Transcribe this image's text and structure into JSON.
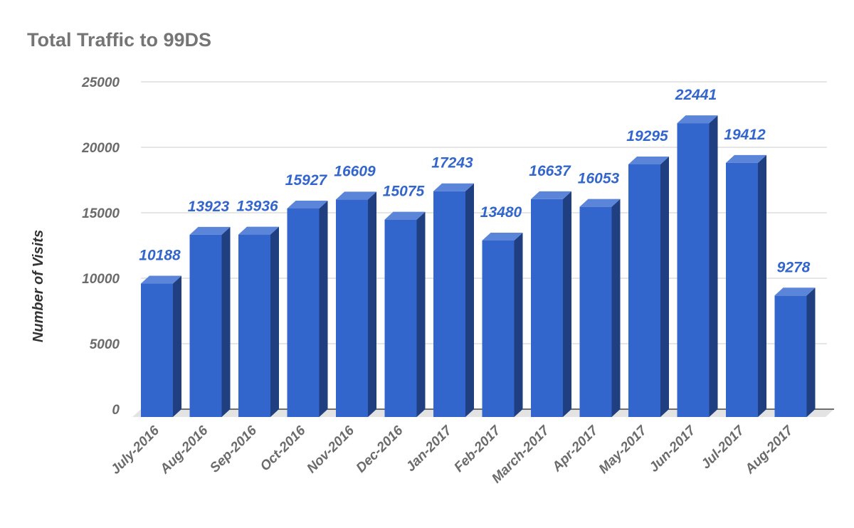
{
  "chart_data": {
    "type": "bar",
    "title": "Total Traffic to 99DS",
    "xlabel": "",
    "ylabel": "Number of Visits",
    "ylim": [
      0,
      25000
    ],
    "yticks": [
      0,
      5000,
      10000,
      15000,
      20000,
      25000
    ],
    "categories": [
      "July-2016",
      "Aug-2016",
      "Sep-2016",
      "Oct-2016",
      "Nov-2016",
      "Dec-2016",
      "Jan-2017",
      "Feb-2017",
      "March-2017",
      "Apr-2017",
      "May-2017",
      "Jun-2017",
      "Jul-2017",
      "Aug-2017"
    ],
    "values": [
      10188,
      13923,
      13936,
      15927,
      16609,
      15075,
      17243,
      13480,
      16637,
      16053,
      19295,
      22441,
      19412,
      9278
    ],
    "data_labels": [
      "10188",
      "13923",
      "13936",
      "15927",
      "16609",
      "15075",
      "17243",
      "13480",
      "16637",
      "16053",
      "19295",
      "22441",
      "19412",
      "9278"
    ],
    "grid": true,
    "legend": "none",
    "style": "3d-column",
    "colors": {
      "bar_front": "#3366cc",
      "bar_top": "#5b85d8",
      "bar_side": "#1f3f80",
      "data_label": "#3366cc",
      "grid": "#cccccc",
      "floor": "#e3e3e3"
    }
  }
}
